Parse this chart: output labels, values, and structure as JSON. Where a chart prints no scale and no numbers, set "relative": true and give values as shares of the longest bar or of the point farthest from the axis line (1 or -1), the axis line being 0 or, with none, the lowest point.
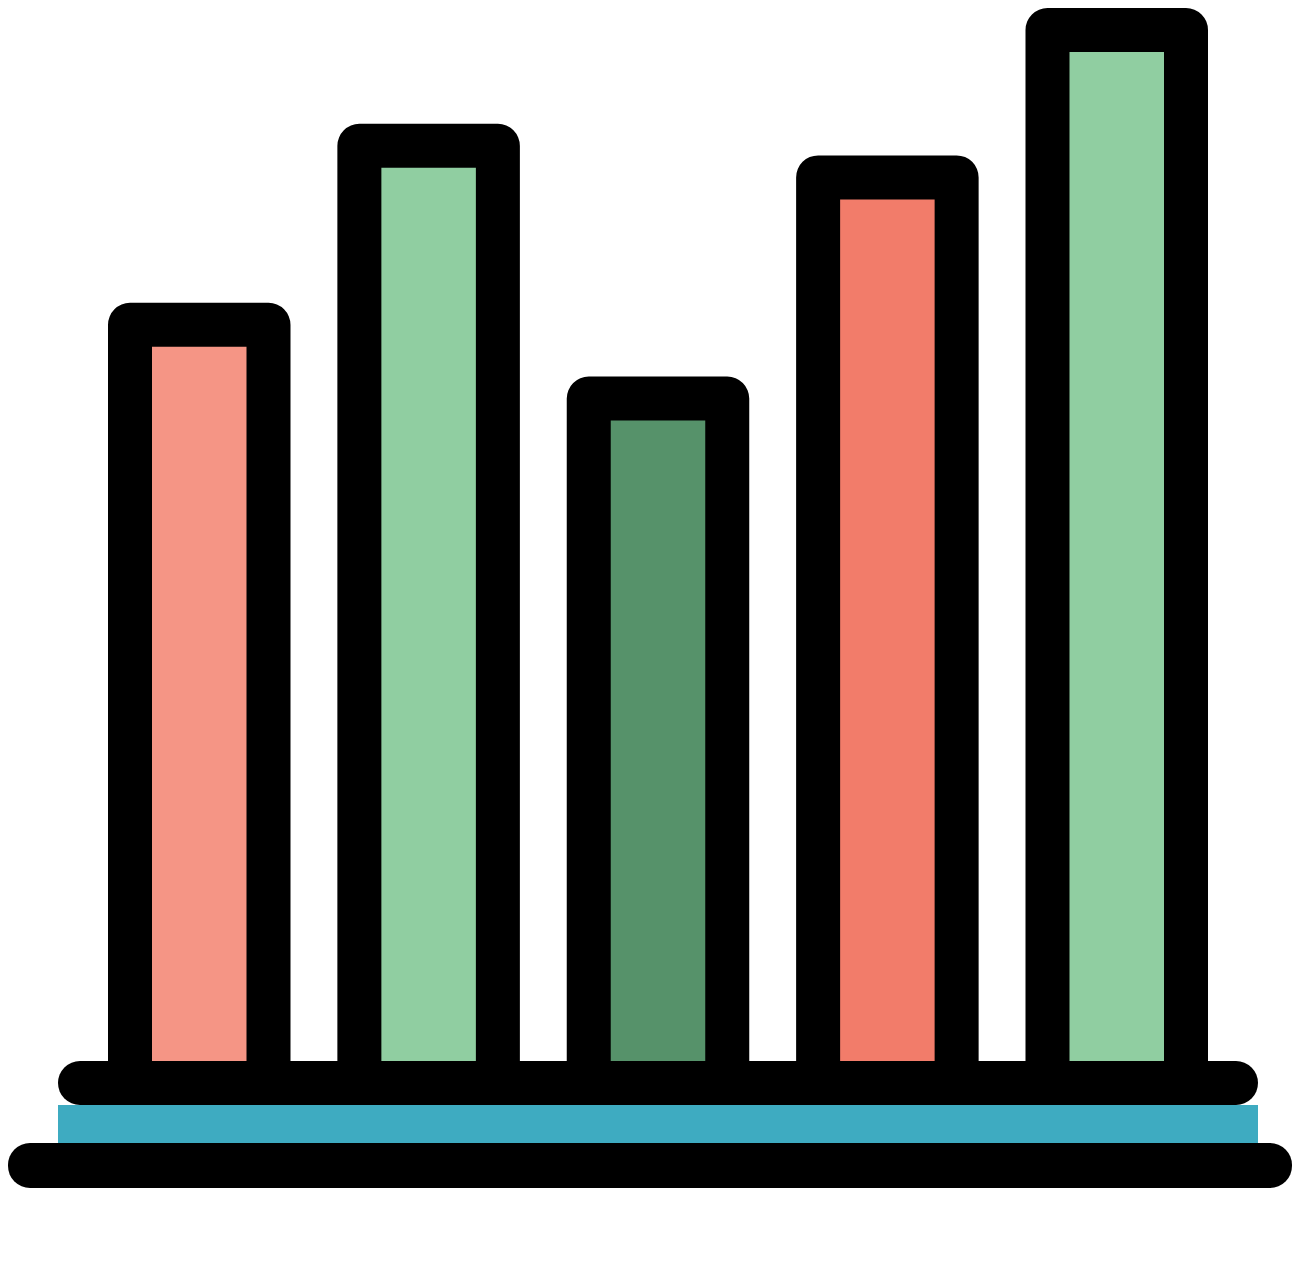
{
  "chart_data": {
    "type": "bar",
    "relative": true,
    "categories": [
      null,
      null,
      null,
      null,
      null
    ],
    "values": [
      0.72,
      0.89,
      0.65,
      0.86,
      1
    ],
    "colors": [
      "#f59585",
      "#90cea1",
      "#56926a",
      "#f27c6a",
      "#90cea1"
    ]
  }
}
